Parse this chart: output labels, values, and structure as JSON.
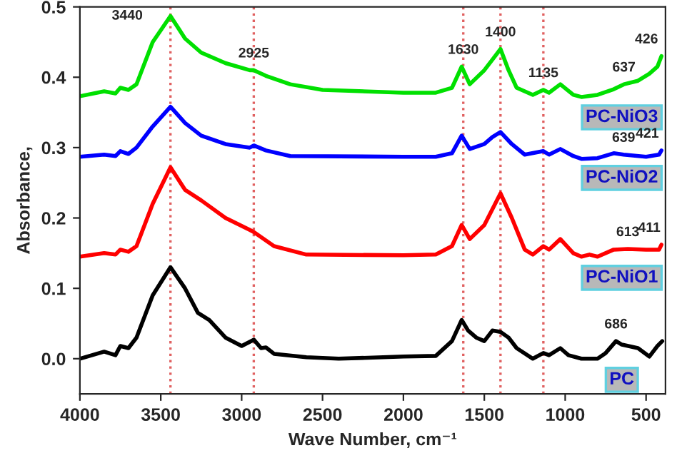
{
  "chart_data": {
    "type": "line",
    "xlabel": "Wave Number, cm⁻¹",
    "ylabel": "Absorbance,",
    "xlim": [
      4000,
      380
    ],
    "ylim": [
      -0.05,
      0.5
    ],
    "xticks": [
      4000,
      3500,
      3000,
      2500,
      2000,
      1500,
      1000,
      500
    ],
    "yticks": [
      {
        "value": 0,
        "label": "0.0"
      },
      {
        "value": 0.1,
        "label": "0.1"
      },
      {
        "value": 0.2,
        "label": "0.2"
      },
      {
        "value": 0.3,
        "label": "0.3"
      },
      {
        "value": 0.4,
        "label": "0.4"
      },
      {
        "value": 0.5,
        "label": "0.5"
      }
    ],
    "grid": false,
    "legend": false,
    "marker": "none",
    "line_style": "solid",
    "series": [
      {
        "name": "PC",
        "color": "#000000",
        "x": [
          4000,
          3850,
          3780,
          3750,
          3700,
          3650,
          3550,
          3440,
          3350,
          3270,
          3200,
          3100,
          3000,
          2925,
          2880,
          2850,
          2800,
          2600,
          2400,
          2000,
          1800,
          1700,
          1640,
          1600,
          1550,
          1500,
          1450,
          1400,
          1350,
          1300,
          1200,
          1135,
          1100,
          1030,
          980,
          900,
          800,
          750,
          686,
          650,
          550,
          480,
          430,
          400
        ],
        "values": [
          0.0,
          0.01,
          0.005,
          0.018,
          0.015,
          0.03,
          0.09,
          0.13,
          0.1,
          0.065,
          0.055,
          0.03,
          0.018,
          0.027,
          0.015,
          0.016,
          0.007,
          0.002,
          0.0,
          0.003,
          0.004,
          0.025,
          0.055,
          0.04,
          0.03,
          0.025,
          0.04,
          0.038,
          0.03,
          0.015,
          0.0,
          0.008,
          0.005,
          0.015,
          0.005,
          0.0,
          0.0,
          0.008,
          0.025,
          0.02,
          0.015,
          0.003,
          0.018,
          0.025
        ]
      },
      {
        "name": "PC-NiO1",
        "color": "#ff0000",
        "x": [
          4000,
          3850,
          3780,
          3750,
          3700,
          3650,
          3550,
          3440,
          3350,
          3250,
          3100,
          2950,
          2925,
          2800,
          2600,
          2000,
          1800,
          1700,
          1640,
          1590,
          1500,
          1400,
          1330,
          1250,
          1200,
          1135,
          1100,
          1030,
          950,
          900,
          850,
          800,
          700,
          613,
          500,
          420,
          405
        ],
        "values": [
          0.145,
          0.15,
          0.148,
          0.155,
          0.152,
          0.16,
          0.22,
          0.272,
          0.24,
          0.225,
          0.2,
          0.183,
          0.18,
          0.16,
          0.148,
          0.147,
          0.148,
          0.16,
          0.19,
          0.17,
          0.19,
          0.235,
          0.2,
          0.155,
          0.148,
          0.16,
          0.155,
          0.17,
          0.15,
          0.145,
          0.148,
          0.145,
          0.155,
          0.156,
          0.155,
          0.155,
          0.162
        ]
      },
      {
        "name": "PC-NiO2",
        "color": "#0000ff",
        "x": [
          4000,
          3850,
          3780,
          3750,
          3700,
          3650,
          3550,
          3440,
          3350,
          3250,
          3100,
          2950,
          2925,
          2850,
          2700,
          2000,
          1800,
          1700,
          1640,
          1590,
          1500,
          1450,
          1400,
          1330,
          1250,
          1135,
          1100,
          1030,
          950,
          900,
          800,
          700,
          639,
          500,
          420,
          405
        ],
        "values": [
          0.287,
          0.29,
          0.288,
          0.295,
          0.291,
          0.3,
          0.33,
          0.358,
          0.335,
          0.317,
          0.305,
          0.3,
          0.303,
          0.296,
          0.288,
          0.287,
          0.287,
          0.292,
          0.317,
          0.298,
          0.305,
          0.315,
          0.322,
          0.305,
          0.29,
          0.295,
          0.29,
          0.298,
          0.288,
          0.284,
          0.285,
          0.292,
          0.29,
          0.287,
          0.29,
          0.296
        ]
      },
      {
        "name": "PC-NiO3",
        "color": "#00e000",
        "x": [
          4000,
          3850,
          3780,
          3750,
          3700,
          3650,
          3550,
          3440,
          3350,
          3250,
          3100,
          2950,
          2925,
          2850,
          2700,
          2500,
          2000,
          1800,
          1700,
          1640,
          1590,
          1500,
          1450,
          1400,
          1350,
          1300,
          1200,
          1135,
          1100,
          1030,
          950,
          900,
          800,
          700,
          637,
          550,
          480,
          430,
          405
        ],
        "values": [
          0.373,
          0.38,
          0.377,
          0.385,
          0.382,
          0.39,
          0.45,
          0.487,
          0.455,
          0.435,
          0.42,
          0.41,
          0.41,
          0.402,
          0.39,
          0.382,
          0.378,
          0.378,
          0.385,
          0.415,
          0.39,
          0.41,
          0.425,
          0.44,
          0.41,
          0.385,
          0.375,
          0.382,
          0.378,
          0.39,
          0.375,
          0.372,
          0.375,
          0.383,
          0.39,
          0.395,
          0.405,
          0.415,
          0.43
        ]
      }
    ],
    "ref_lines": [
      {
        "axis": "x",
        "value": 3440,
        "color": "#e06060",
        "line_style": "dotted"
      },
      {
        "axis": "x",
        "value": 2925,
        "color": "#e06060",
        "line_style": "dotted"
      },
      {
        "axis": "x",
        "value": 1630,
        "color": "#e06060",
        "line_style": "dotted"
      },
      {
        "axis": "x",
        "value": 1400,
        "color": "#e06060",
        "line_style": "dotted"
      },
      {
        "axis": "x",
        "value": 1135,
        "color": "#e06060",
        "line_style": "dotted"
      }
    ],
    "annotations": [
      {
        "text": "3440",
        "x": 3440,
        "y": 0.487
      },
      {
        "text": "2925",
        "x": 2925,
        "y": 0.41
      },
      {
        "text": "1630",
        "x": 1630,
        "y": 0.415
      },
      {
        "text": "1400",
        "x": 1400,
        "y": 0.44
      },
      {
        "text": "1135",
        "x": 1135,
        "y": 0.382
      },
      {
        "text": "637",
        "x": 637,
        "y": 0.39
      },
      {
        "text": "426",
        "x": 426,
        "y": 0.43
      },
      {
        "text": "639",
        "x": 639,
        "y": 0.29
      },
      {
        "text": "421",
        "x": 421,
        "y": 0.296
      },
      {
        "text": "613",
        "x": 613,
        "y": 0.156
      },
      {
        "text": "411",
        "x": 411,
        "y": 0.162
      },
      {
        "text": "686",
        "x": 686,
        "y": 0.025
      }
    ]
  }
}
